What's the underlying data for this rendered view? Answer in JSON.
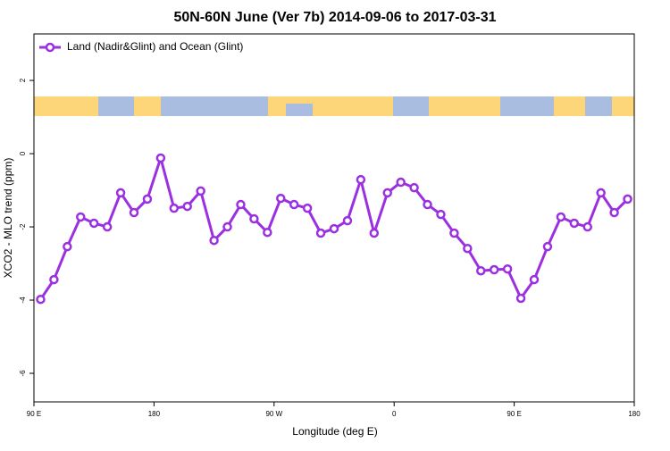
{
  "chart_data": {
    "type": "line",
    "title": "50N-60N June (Ver 7b)   2014-09-06 to 2017-03-31",
    "x_label": "Longitude (deg E)",
    "y_label": "XCO2 - MLO trend (ppm)",
    "x": [
      95,
      105,
      115,
      125,
      135,
      145,
      155,
      165,
      175,
      185,
      195,
      205,
      215,
      225,
      235,
      245,
      255,
      265,
      275,
      285,
      295,
      305,
      315,
      325,
      335,
      345,
      355,
      365,
      375,
      385,
      395,
      405,
      415,
      425,
      435,
      445,
      455,
      465,
      475,
      485,
      495,
      505,
      515,
      525,
      535
    ],
    "series": [
      {
        "name": "Land (Nadir&Glint) and Ocean (Glint)",
        "color": "#9b30e0",
        "values": [
          -3.98,
          -3.44,
          -2.54,
          -1.73,
          -1.9,
          -2.0,
          -1.07,
          -1.61,
          -1.24,
          -0.12,
          -1.49,
          -1.44,
          -1.02,
          -2.37,
          -2.0,
          -1.39,
          -1.78,
          -2.15,
          -1.22,
          -1.39,
          -1.49,
          -2.17,
          -2.05,
          -1.83,
          -0.71,
          -2.17,
          -1.07,
          -0.78,
          -0.93,
          -1.39,
          -1.66,
          -2.17,
          -2.59,
          -3.2,
          -3.17,
          -3.15,
          -3.95,
          -3.44,
          -2.54,
          -1.73,
          -1.9,
          -2.0,
          -1.07,
          -1.61,
          -1.24
        ]
      }
    ],
    "xlim": [
      90,
      540
    ],
    "xticks": [
      {
        "value": 90,
        "label": "90 E"
      },
      180,
      {
        "value": 270,
        "label": "90 W"
      },
      {
        "value": 360,
        "label": "0"
      },
      {
        "value": 450,
        "label": "90 E"
      },
      {
        "value": 540,
        "label": "180"
      }
    ],
    "ylim": [
      -6.78,
      3.27
    ],
    "yticks": [
      -6,
      -4,
      -2,
      0,
      2
    ],
    "legend": "top-left"
  }
}
